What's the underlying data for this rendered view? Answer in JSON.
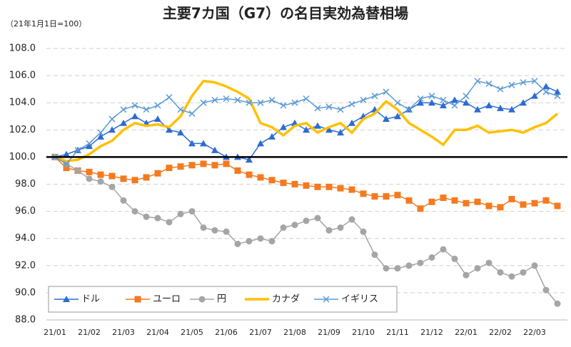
{
  "chart_data": {
    "type": "line",
    "title": "主要7カ国（G7）の名目実効為替相場",
    "subtitle": "（21年1月1日=100）",
    "categories": [
      "21/01",
      null,
      null,
      "21/02",
      null,
      null,
      "21/03",
      null,
      null,
      "21/04",
      null,
      null,
      "21/05",
      null,
      null,
      "21/06",
      null,
      null,
      "21/07",
      null,
      null,
      "21/08",
      null,
      null,
      "21/09",
      null,
      null,
      "21/10",
      null,
      null,
      "21/11",
      null,
      null,
      "21/12",
      null,
      null,
      "22/01",
      null,
      null,
      "22/02",
      null,
      null,
      "22/03",
      null,
      null
    ],
    "ylim": [
      88,
      108
    ],
    "yticks": [
      {
        "value": 88,
        "label": "88.0"
      },
      {
        "value": 90,
        "label": "90.0"
      },
      {
        "value": 92,
        "label": "92.0"
      },
      {
        "value": 94,
        "label": "94.0"
      },
      {
        "value": 96,
        "label": "96.0"
      },
      {
        "value": 98,
        "label": "98.0"
      },
      {
        "value": 100,
        "label": "100.0"
      },
      {
        "value": 102,
        "label": "102.0"
      },
      {
        "value": 104,
        "label": "104.0"
      },
      {
        "value": 106,
        "label": "106.0"
      },
      {
        "value": 108,
        "label": "108.0"
      }
    ],
    "grid": true,
    "reference_line": 100,
    "legend": "bottom-left",
    "series": [
      {
        "name": "ドル",
        "color": "#2e6bd1",
        "marker": "triangle",
        "values": [
          100,
          100.2,
          100.5,
          100.8,
          101.5,
          102,
          102.5,
          103,
          102.5,
          102.8,
          102,
          101.8,
          101,
          101,
          100.5,
          100,
          100,
          99.8,
          101,
          101.5,
          102.2,
          102.5,
          102,
          102.3,
          102,
          101.8,
          102.5,
          103,
          103.5,
          102.8,
          103,
          103.5,
          104,
          104,
          103.8,
          104.2,
          104,
          103.5,
          103.8,
          103.6,
          103.5,
          104,
          104.5,
          105.2,
          104.8
        ]
      },
      {
        "name": "ユーロ",
        "color": "#f47a1f",
        "marker": "square",
        "values": [
          100,
          99.2,
          99,
          98.9,
          98.7,
          98.6,
          98.4,
          98.3,
          98.5,
          98.8,
          99.2,
          99.3,
          99.4,
          99.5,
          99.4,
          99.5,
          99,
          98.7,
          98.5,
          98.3,
          98.1,
          98,
          97.9,
          97.8,
          97.8,
          97.7,
          97.6,
          97.3,
          97.1,
          97.1,
          97.2,
          96.8,
          96.2,
          96.7,
          97,
          96.8,
          96.6,
          96.7,
          96.4,
          96.3,
          96.9,
          96.5,
          96.6,
          96.8,
          96.4
        ]
      },
      {
        "name": "円",
        "color": "#a5a5a5",
        "marker": "circle",
        "values": [
          100,
          99.5,
          99,
          98.4,
          98.2,
          97.8,
          96.8,
          96,
          95.6,
          95.5,
          95.2,
          95.8,
          96,
          94.8,
          94.6,
          94.5,
          93.6,
          93.8,
          94,
          93.8,
          94.8,
          95,
          95.3,
          95.5,
          94.6,
          94.8,
          95.4,
          94.5,
          92.8,
          91.8,
          91.8,
          92,
          92.2,
          92.6,
          93.2,
          92.5,
          91.3,
          91.8,
          92.2,
          91.5,
          91.2,
          91.5,
          92,
          90.2,
          89.2
        ]
      },
      {
        "name": "カナダ",
        "color": "#ffc000",
        "marker": "none",
        "values": [
          100,
          99.7,
          99.8,
          100.2,
          100.8,
          101.2,
          102,
          102.5,
          102.3,
          102.4,
          102.2,
          103,
          104.5,
          105.6,
          105.5,
          105.2,
          104.8,
          104.3,
          102.5,
          102.2,
          101.6,
          102.3,
          102.5,
          101.8,
          102.2,
          102.5,
          101.8,
          102.8,
          103.2,
          104.1,
          103.5,
          102.5,
          102,
          101.5,
          100.9,
          102,
          102,
          102.3,
          101.8,
          101.9,
          102,
          101.8,
          102.2,
          102.5,
          103.2
        ]
      },
      {
        "name": "イギリス",
        "color": "#5b9bd5",
        "marker": "x",
        "values": [
          100,
          99.5,
          100.5,
          101,
          101.8,
          102.8,
          103.5,
          103.8,
          103.5,
          103.8,
          104.4,
          103.5,
          103.2,
          104,
          104.2,
          104.3,
          104.2,
          104,
          104,
          104.2,
          103.8,
          104,
          104.3,
          103.6,
          103.7,
          103.5,
          103.9,
          104.2,
          104.5,
          104.8,
          104,
          103.5,
          104.3,
          104.5,
          104.2,
          103.8,
          104.5,
          105.6,
          105.4,
          105,
          105.3,
          105.5,
          105.6,
          104.8,
          104.5
        ]
      }
    ]
  }
}
